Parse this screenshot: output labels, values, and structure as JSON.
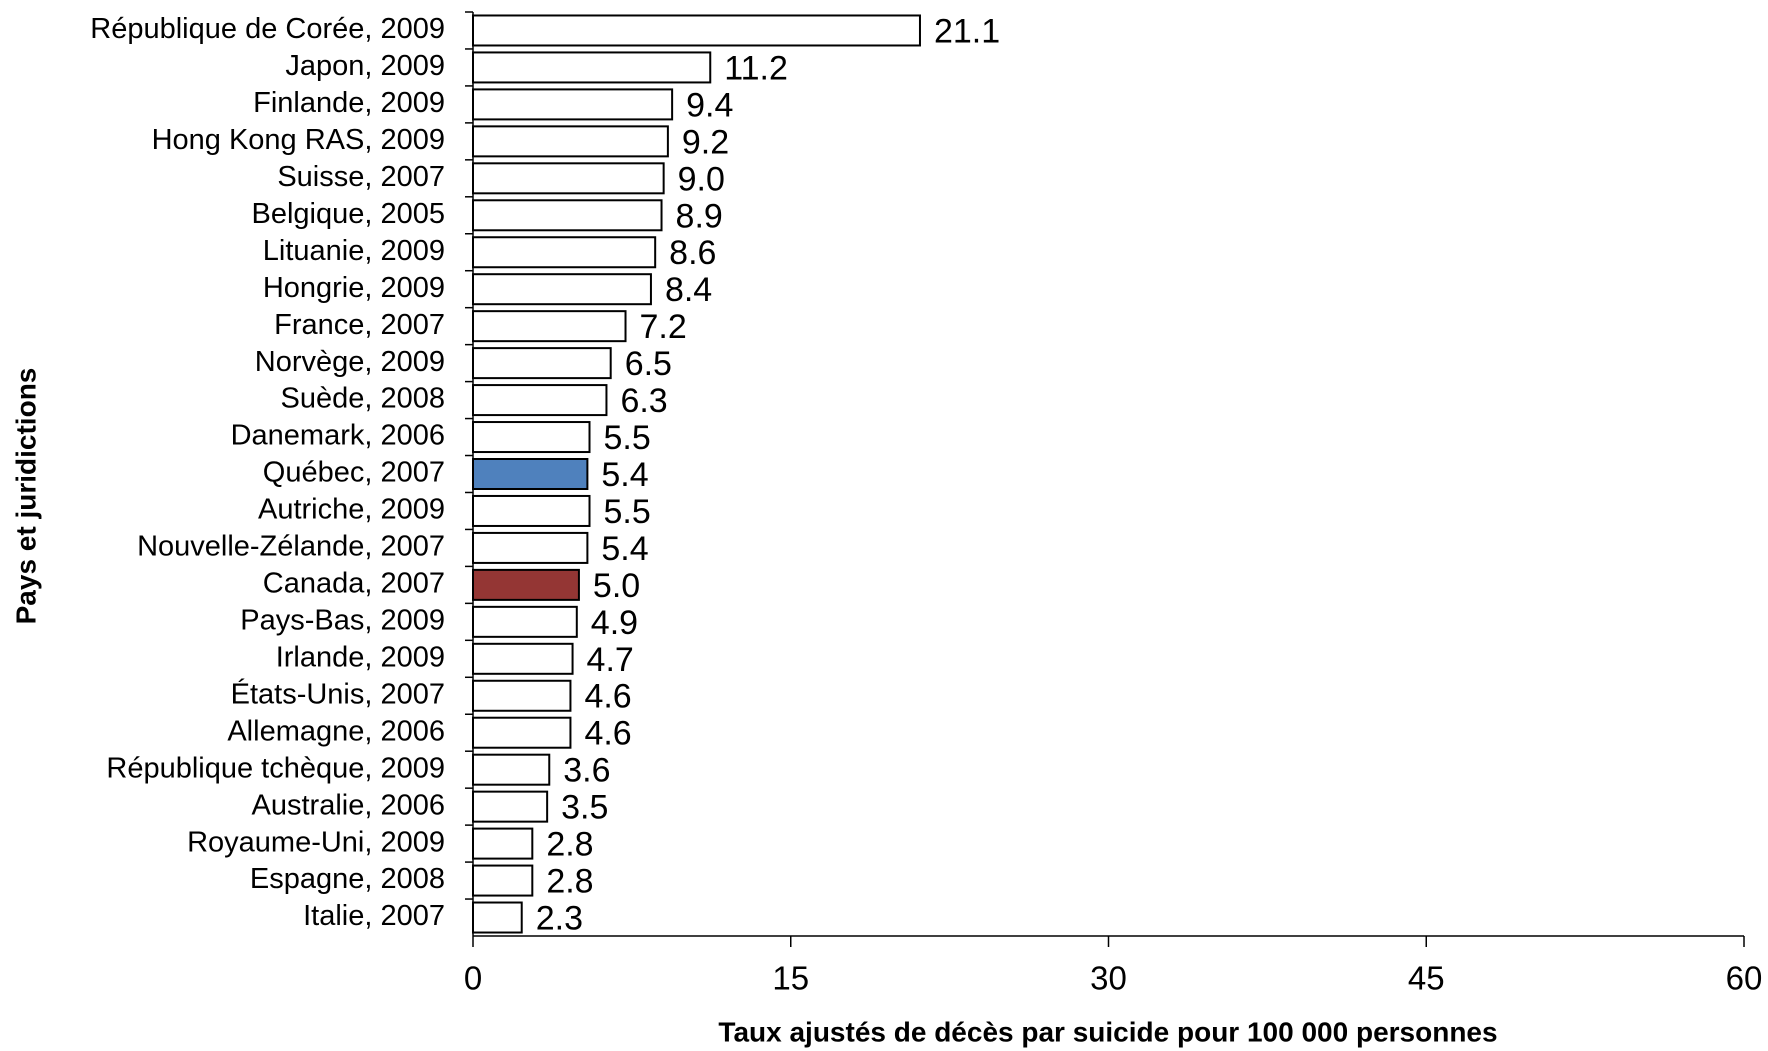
{
  "chart_data": {
    "type": "bar",
    "orientation": "horizontal",
    "x_label": "Taux ajustés de décès par suicide pour 100 000 personnes",
    "y_label": "Pays et juridictions",
    "categories": [
      "République de Corée, 2009",
      "Japon, 2009",
      "Finlande, 2009",
      "Hong Kong RAS, 2009",
      "Suisse, 2007",
      "Belgique, 2005",
      "Lituanie, 2009",
      "Hongrie, 2009",
      "France, 2007",
      "Norvège, 2009",
      "Suède, 2008",
      "Danemark, 2006",
      "Québec, 2007",
      "Autriche, 2009",
      "Nouvelle-Zélande, 2007",
      "Canada, 2007",
      "Pays-Bas, 2009",
      "Irlande, 2009",
      "États-Unis, 2007",
      "Allemagne, 2006",
      "République tchèque, 2009",
      "Australie, 2006",
      "Royaume-Uni, 2009",
      "Espagne, 2008",
      "Italie, 2007"
    ],
    "values": [
      21.1,
      11.2,
      9.4,
      9.2,
      9.0,
      8.9,
      8.6,
      8.4,
      7.2,
      6.5,
      6.3,
      5.5,
      5.4,
      5.5,
      5.4,
      5.0,
      4.9,
      4.7,
      4.6,
      4.6,
      3.6,
      3.5,
      2.8,
      2.8,
      2.3
    ],
    "value_labels": [
      "21.1",
      "11.2",
      "9.4",
      "9.2",
      "9.0",
      "8.9",
      "8.6",
      "8.4",
      "7.2",
      "6.5",
      "6.3",
      "5.5",
      "5.4",
      "5.5",
      "5.4",
      "5.0",
      "4.9",
      "4.7",
      "4.6",
      "4.6",
      "3.6",
      "3.5",
      "2.8",
      "2.8",
      "2.3"
    ],
    "colors": [
      "#ffffff",
      "#ffffff",
      "#ffffff",
      "#ffffff",
      "#ffffff",
      "#ffffff",
      "#ffffff",
      "#ffffff",
      "#ffffff",
      "#ffffff",
      "#ffffff",
      "#ffffff",
      "#4f81bd",
      "#ffffff",
      "#ffffff",
      "#943634",
      "#ffffff",
      "#ffffff",
      "#ffffff",
      "#ffffff",
      "#ffffff",
      "#ffffff",
      "#ffffff",
      "#ffffff",
      "#ffffff"
    ],
    "xlim": [
      0,
      60
    ],
    "xticks": [
      0,
      15,
      30,
      45,
      60
    ],
    "grid": false
  }
}
